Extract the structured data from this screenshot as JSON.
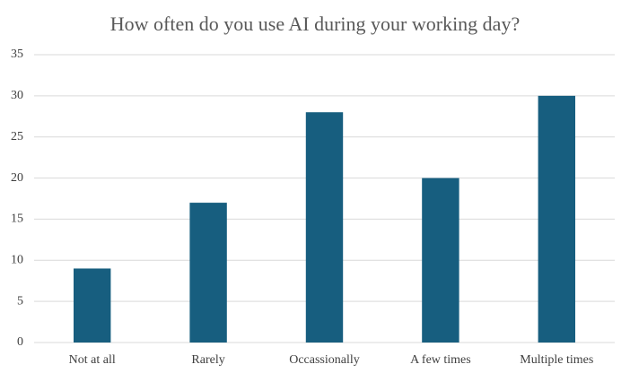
{
  "chart_data": {
    "type": "bar",
    "title": "How often do you use AI during your working day?",
    "categories": [
      "Not at all",
      "Rarely",
      "Occassionally",
      "A few times",
      "Multiple times"
    ],
    "values": [
      9,
      17,
      28,
      20,
      30
    ],
    "color": "#175e7f",
    "ylim": [
      0,
      35
    ],
    "yticks": [
      0,
      5,
      10,
      15,
      20,
      25,
      30,
      35
    ],
    "grid": true
  }
}
